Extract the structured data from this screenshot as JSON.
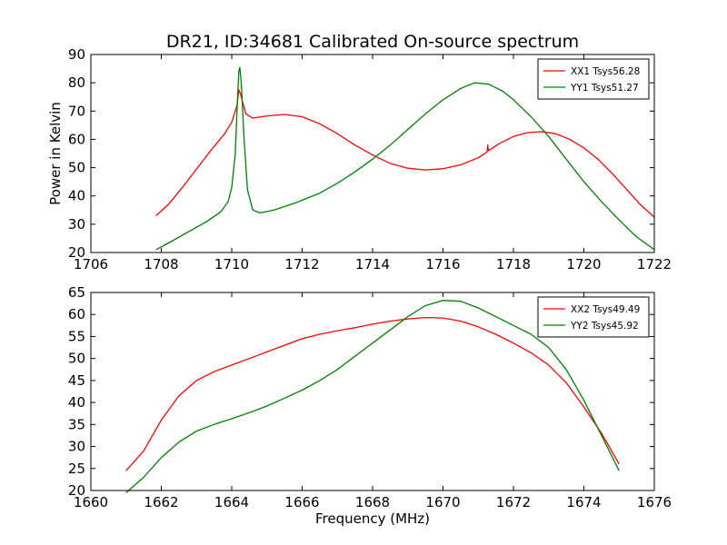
{
  "title": "DR21, ID:34681 Calibrated On-source spectrum",
  "chart_data": [
    {
      "type": "line",
      "ylabel": "Power in Kelvin",
      "xlabel": "",
      "xlim": [
        1706,
        1722
      ],
      "ylim": [
        20,
        90
      ],
      "x_ticks": [
        "1706",
        "1708",
        "1710",
        "1712",
        "1714",
        "1716",
        "1718",
        "1720",
        "1722"
      ],
      "y_ticks": [
        "20",
        "30",
        "40",
        "50",
        "60",
        "70",
        "80",
        "90"
      ],
      "legend_position": "top-right",
      "grid": false,
      "series": [
        {
          "name": "XX1 Tsys56.28",
          "color": "#ff0000",
          "points": [
            [
              1707.85,
              33
            ],
            [
              1708.2,
              37
            ],
            [
              1708.6,
              43
            ],
            [
              1709.0,
              49.5
            ],
            [
              1709.4,
              56
            ],
            [
              1709.8,
              62
            ],
            [
              1710.0,
              66
            ],
            [
              1710.15,
              72
            ],
            [
              1710.2,
              77.5
            ],
            [
              1710.25,
              76
            ],
            [
              1710.4,
              69
            ],
            [
              1710.6,
              67.5
            ],
            [
              1711.0,
              68.3
            ],
            [
              1711.5,
              68.8
            ],
            [
              1712.0,
              68
            ],
            [
              1712.5,
              65.5
            ],
            [
              1713.0,
              62
            ],
            [
              1713.5,
              58
            ],
            [
              1714.0,
              54.5
            ],
            [
              1714.5,
              51.5
            ],
            [
              1715.0,
              49.8
            ],
            [
              1715.5,
              49.2
            ],
            [
              1716.0,
              49.6
            ],
            [
              1716.5,
              51
            ],
            [
              1717.0,
              53.5
            ],
            [
              1717.25,
              55.5
            ],
            [
              1717.27,
              58
            ],
            [
              1717.29,
              56
            ],
            [
              1717.6,
              58.5
            ],
            [
              1718.0,
              61
            ],
            [
              1718.4,
              62.4
            ],
            [
              1718.8,
              62.7
            ],
            [
              1719.2,
              62
            ],
            [
              1719.6,
              60
            ],
            [
              1720.0,
              57
            ],
            [
              1720.4,
              53
            ],
            [
              1720.8,
              48
            ],
            [
              1721.2,
              42.5
            ],
            [
              1721.6,
              37
            ],
            [
              1722.0,
              32.5
            ]
          ]
        },
        {
          "name": "YY1 Tsys51.27",
          "color": "#008000",
          "points": [
            [
              1707.85,
              21
            ],
            [
              1708.3,
              24
            ],
            [
              1708.8,
              27.5
            ],
            [
              1709.3,
              31
            ],
            [
              1709.7,
              34.5
            ],
            [
              1709.9,
              38
            ],
            [
              1710.0,
              43
            ],
            [
              1710.1,
              55
            ],
            [
              1710.15,
              70
            ],
            [
              1710.2,
              84
            ],
            [
              1710.23,
              85.5
            ],
            [
              1710.27,
              80
            ],
            [
              1710.35,
              60
            ],
            [
              1710.45,
              42
            ],
            [
              1710.6,
              35
            ],
            [
              1710.8,
              34
            ],
            [
              1711.2,
              35
            ],
            [
              1711.8,
              37.5
            ],
            [
              1712.5,
              41
            ],
            [
              1713.0,
              44.5
            ],
            [
              1713.5,
              48.5
            ],
            [
              1714.0,
              53
            ],
            [
              1714.5,
              58
            ],
            [
              1715.0,
              63.5
            ],
            [
              1715.5,
              69
            ],
            [
              1716.0,
              74
            ],
            [
              1716.5,
              78
            ],
            [
              1716.9,
              80
            ],
            [
              1717.3,
              79.5
            ],
            [
              1717.7,
              77
            ],
            [
              1718.0,
              74
            ],
            [
              1718.5,
              68
            ],
            [
              1719.0,
              61
            ],
            [
              1719.5,
              53
            ],
            [
              1720.0,
              45
            ],
            [
              1720.5,
              38
            ],
            [
              1721.0,
              31.5
            ],
            [
              1721.5,
              25.5
            ],
            [
              1722.0,
              21
            ]
          ]
        }
      ]
    },
    {
      "type": "line",
      "ylabel": "",
      "xlabel": "Frequency (MHz)",
      "xlim": [
        1660,
        1676
      ],
      "ylim": [
        20,
        65
      ],
      "x_ticks": [
        "1660",
        "1662",
        "1664",
        "1666",
        "1668",
        "1670",
        "1672",
        "1674",
        "1676"
      ],
      "y_ticks": [
        "20",
        "25",
        "30",
        "35",
        "40",
        "45",
        "50",
        "55",
        "60",
        "65"
      ],
      "legend_position": "top-right",
      "grid": false,
      "series": [
        {
          "name": "XX2 Tsys49.49",
          "color": "#ff0000",
          "points": [
            [
              1661.0,
              24.5
            ],
            [
              1661.5,
              29
            ],
            [
              1662.0,
              36
            ],
            [
              1662.5,
              41.5
            ],
            [
              1663.0,
              45
            ],
            [
              1663.5,
              47
            ],
            [
              1664.0,
              48.5
            ],
            [
              1664.5,
              50
            ],
            [
              1665.0,
              51.5
            ],
            [
              1665.5,
              53
            ],
            [
              1666.0,
              54.5
            ],
            [
              1666.5,
              55.5
            ],
            [
              1667.0,
              56.3
            ],
            [
              1667.5,
              57
            ],
            [
              1668.0,
              57.8
            ],
            [
              1668.5,
              58.5
            ],
            [
              1669.0,
              59
            ],
            [
              1669.5,
              59.3
            ],
            [
              1670.0,
              59.2
            ],
            [
              1670.5,
              58.5
            ],
            [
              1671.0,
              57.2
            ],
            [
              1671.5,
              55.5
            ],
            [
              1672.0,
              53.5
            ],
            [
              1672.5,
              51.3
            ],
            [
              1673.0,
              48.5
            ],
            [
              1673.5,
              44.5
            ],
            [
              1674.0,
              39
            ],
            [
              1674.5,
              33
            ],
            [
              1675.0,
              26
            ]
          ]
        },
        {
          "name": "YY2 Tsys45.92",
          "color": "#008000",
          "points": [
            [
              1661.0,
              19.5
            ],
            [
              1661.5,
              23
            ],
            [
              1662.0,
              27.5
            ],
            [
              1662.5,
              31
            ],
            [
              1663.0,
              33.5
            ],
            [
              1663.5,
              35
            ],
            [
              1664.0,
              36.3
            ],
            [
              1664.5,
              37.7
            ],
            [
              1665.0,
              39.2
            ],
            [
              1665.5,
              41
            ],
            [
              1666.0,
              42.8
            ],
            [
              1666.5,
              45
            ],
            [
              1667.0,
              47.5
            ],
            [
              1667.5,
              50.5
            ],
            [
              1668.0,
              53.5
            ],
            [
              1668.5,
              56.5
            ],
            [
              1669.0,
              59.5
            ],
            [
              1669.5,
              62
            ],
            [
              1670.0,
              63.2
            ],
            [
              1670.5,
              63
            ],
            [
              1671.0,
              61.5
            ],
            [
              1671.5,
              59.5
            ],
            [
              1672.0,
              57.5
            ],
            [
              1672.5,
              55.5
            ],
            [
              1673.0,
              52.5
            ],
            [
              1673.5,
              47.5
            ],
            [
              1674.0,
              40.5
            ],
            [
              1674.5,
              32.5
            ],
            [
              1675.0,
              24.5
            ]
          ]
        }
      ]
    }
  ]
}
